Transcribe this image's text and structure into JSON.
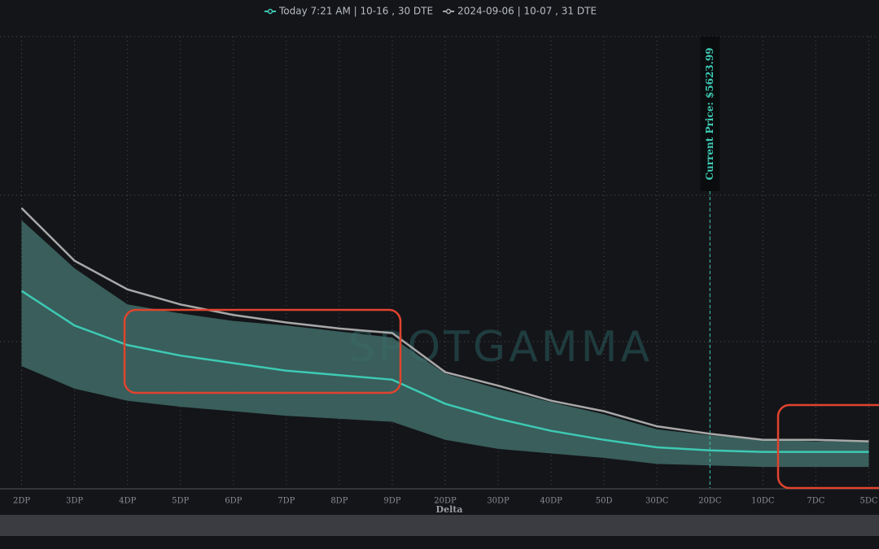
{
  "chart_data": {
    "type": "line",
    "x_label": "Delta",
    "annotation": "Current Price: $5623.99",
    "watermark": "SPOTGAMMA",
    "categories": [
      "2DP",
      "3DP",
      "4DP",
      "5DP",
      "6DP",
      "7DP",
      "8DP",
      "9DP",
      "20DP",
      "30DP",
      "40DP",
      "50D",
      "30DC",
      "20DC",
      "10DC",
      "7DC",
      "5DC"
    ],
    "ylim": [
      10,
      40
    ],
    "band": {
      "color": "#3f6b67",
      "upper": [
        27.8,
        24.6,
        22.2,
        21.6,
        21.1,
        20.8,
        20.4,
        20.0,
        17.6,
        16.6,
        15.7,
        14.9,
        13.9,
        13.5,
        13.2,
        13.1,
        13.1
      ],
      "lower": [
        18.1,
        16.6,
        15.8,
        15.4,
        15.1,
        14.8,
        14.6,
        14.4,
        13.2,
        12.6,
        12.3,
        12.0,
        11.6,
        11.5,
        11.4,
        11.4,
        11.4
      ]
    },
    "series": [
      {
        "name": "Today 7:21 AM | 10-16 , 30 DTE",
        "color": "#3ec9b4",
        "values": [
          23.1,
          20.8,
          19.5,
          18.8,
          18.3,
          17.8,
          17.5,
          17.2,
          15.6,
          14.6,
          13.8,
          13.2,
          12.7,
          12.5,
          12.4,
          12.4,
          12.4
        ]
      },
      {
        "name": "2024-09-06 | 10-07 , 31 DTE",
        "color": "#a8a8a8",
        "values": [
          28.6,
          25.1,
          23.2,
          22.2,
          21.5,
          21.0,
          20.6,
          20.3,
          17.7,
          16.8,
          15.8,
          15.1,
          14.1,
          13.6,
          13.2,
          13.2,
          13.1
        ]
      }
    ]
  }
}
